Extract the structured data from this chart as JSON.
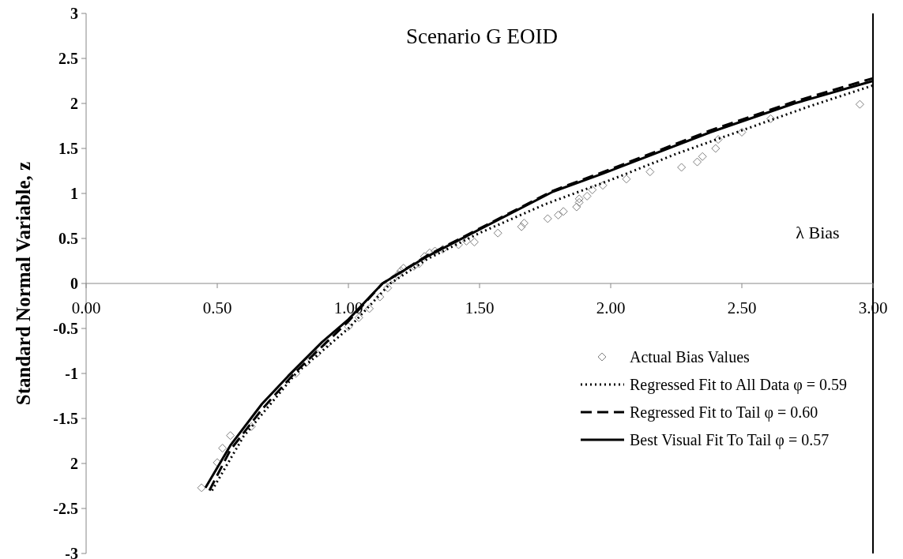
{
  "chart_data": {
    "type": "scatter",
    "title": "Scenario G EOID",
    "xlabel": "λ Bias",
    "ylabel": "Standard Normal Variable, z",
    "xlim": [
      0,
      3
    ],
    "ylim": [
      -3,
      3
    ],
    "xticks": [
      {
        "value": 0,
        "label": "0.00"
      },
      {
        "value": 0.5,
        "label": "0.50"
      },
      {
        "value": 1,
        "label": "1.00"
      },
      {
        "value": 1.5,
        "label": "1.50"
      },
      {
        "value": 2,
        "label": "2.00"
      },
      {
        "value": 2.5,
        "label": "2.50"
      },
      {
        "value": 3,
        "label": "3.00"
      }
    ],
    "yticks": [
      3,
      2.5,
      2,
      1.5,
      1,
      0.5,
      0,
      -0.5,
      -1,
      -1.5,
      {
        "value": -2,
        "label": "2"
      },
      -2.5,
      -3
    ],
    "grid": false,
    "legend": "bottom right",
    "series": [
      {
        "name": "Actual Bias Values",
        "marker": "diamond",
        "color": "#808080",
        "x": [
          0.44,
          0.5,
          0.52,
          0.55,
          0.63,
          0.8,
          0.84,
          0.88,
          0.92,
          1.0,
          1.04,
          1.08,
          1.12,
          1.15,
          1.17,
          1.19,
          1.2,
          1.21,
          1.25,
          1.27,
          1.29,
          1.31,
          1.33,
          1.36,
          1.42,
          1.45,
          1.48,
          1.57,
          1.66,
          1.67,
          1.76,
          1.8,
          1.82,
          1.87,
          1.88,
          1.88,
          1.91,
          1.93,
          1.97,
          2.06,
          2.15,
          2.27,
          2.33,
          2.35,
          2.4,
          2.41,
          2.5,
          2.61,
          2.95
        ],
        "values": [
          -2.27,
          -1.99,
          -1.83,
          -1.69,
          -1.59,
          -1.0,
          -0.88,
          -0.78,
          -0.67,
          -0.48,
          -0.38,
          -0.28,
          -0.15,
          -0.05,
          0.05,
          0.1,
          0.14,
          0.17,
          0.19,
          0.22,
          0.3,
          0.34,
          0.36,
          0.38,
          0.43,
          0.47,
          0.46,
          0.56,
          0.63,
          0.67,
          0.72,
          0.76,
          0.8,
          0.85,
          0.9,
          0.94,
          0.97,
          1.04,
          1.09,
          1.16,
          1.24,
          1.29,
          1.35,
          1.41,
          1.5,
          1.6,
          1.68,
          1.83,
          1.99
        ]
      },
      {
        "name": "Regressed Fit to All Data φ = 0.59",
        "type": "line",
        "line_style": "dotted",
        "color": "#000000",
        "x": [
          0.48,
          0.6,
          0.8,
          1.0,
          1.16,
          1.3,
          1.5,
          1.75,
          2.0,
          2.25,
          2.5,
          2.75,
          3.0
        ],
        "values": [
          -2.3,
          -1.7,
          -1.0,
          -0.5,
          0,
          0.27,
          0.56,
          0.88,
          1.15,
          1.44,
          1.7,
          1.96,
          2.2
        ]
      },
      {
        "name": "Regressed Fit to Tail φ = 0.60",
        "type": "line",
        "line_style": "dashed",
        "color": "#000000",
        "x": [
          0.47,
          0.55,
          0.67,
          0.8,
          1.0,
          1.13,
          1.3,
          1.52,
          1.78,
          2.0,
          2.38,
          2.7,
          3.0
        ],
        "values": [
          -2.3,
          -1.85,
          -1.4,
          -0.98,
          -0.42,
          0,
          0.31,
          0.64,
          1.03,
          1.27,
          1.7,
          2.02,
          2.28
        ]
      },
      {
        "name": "Best Visual Fit To Tail φ = 0.57",
        "type": "line",
        "line_style": "solid",
        "color": "#000000",
        "x": [
          0.455,
          0.55,
          0.67,
          0.77,
          0.9,
          1.0,
          1.13,
          1.3,
          1.52,
          1.78,
          1.97,
          2.38,
          2.7,
          3.0
        ],
        "values": [
          -2.27,
          -1.8,
          -1.34,
          -1.03,
          -0.65,
          -0.4,
          0,
          0.3,
          0.63,
          1.02,
          1.22,
          1.68,
          2.0,
          2.25
        ]
      }
    ]
  }
}
